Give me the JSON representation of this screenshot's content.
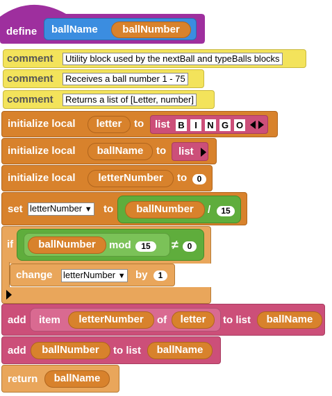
{
  "procedure": {
    "define_label": "define",
    "name": "ballName",
    "param": "ballNumber"
  },
  "comments": [
    {
      "label": "comment",
      "text": "Utility block used by the nextBall and typeBalls blocks"
    },
    {
      "label": "comment",
      "text": "Receives a ball number 1 - 75"
    },
    {
      "label": "comment",
      "text": "Returns a list of [Letter, number]"
    }
  ],
  "init_letter": {
    "label": "initialize local",
    "var": "letter",
    "to": "to",
    "list_label": "list",
    "items": [
      "B",
      "I",
      "N",
      "G",
      "O"
    ]
  },
  "init_ballname": {
    "label": "initialize local",
    "var": "ballName",
    "to": "to",
    "list_label": "list"
  },
  "init_letternumber": {
    "label": "initialize local",
    "var": "letterNumber",
    "to": "to",
    "value": "0"
  },
  "set_block": {
    "label": "set",
    "var": "letterNumber",
    "to": "to",
    "operand": "ballNumber",
    "op": "/",
    "divisor": "15"
  },
  "if_block": {
    "label": "if",
    "operand": "ballNumber",
    "mod": "mod",
    "mod_value": "15",
    "neq": "≠",
    "compare": "0"
  },
  "change_block": {
    "label": "change",
    "var": "letterNumber",
    "by": "by",
    "value": "1"
  },
  "add_item": {
    "label": "add",
    "item": "item",
    "index_var": "letterNumber",
    "of": "of",
    "list_var": "letter",
    "to_list": "to list",
    "target": "ballName"
  },
  "add_number": {
    "label": "add",
    "value": "ballNumber",
    "to_list": "to list",
    "target": "ballName"
  },
  "return_block": {
    "label": "return",
    "value": "ballName"
  },
  "colors": {
    "define": "#9e2f9e",
    "comment": "#f3e35b",
    "variables": "#d8822c",
    "lists": "#cc4f79",
    "operators": "#5fad3c",
    "control": "#e9a65b",
    "custom": "#3b8de0"
  },
  "icons": [
    "dropdown-arrow-icon",
    "list-arrows-icon",
    "list-right-arrow-icon",
    "else-arrow-icon"
  ]
}
